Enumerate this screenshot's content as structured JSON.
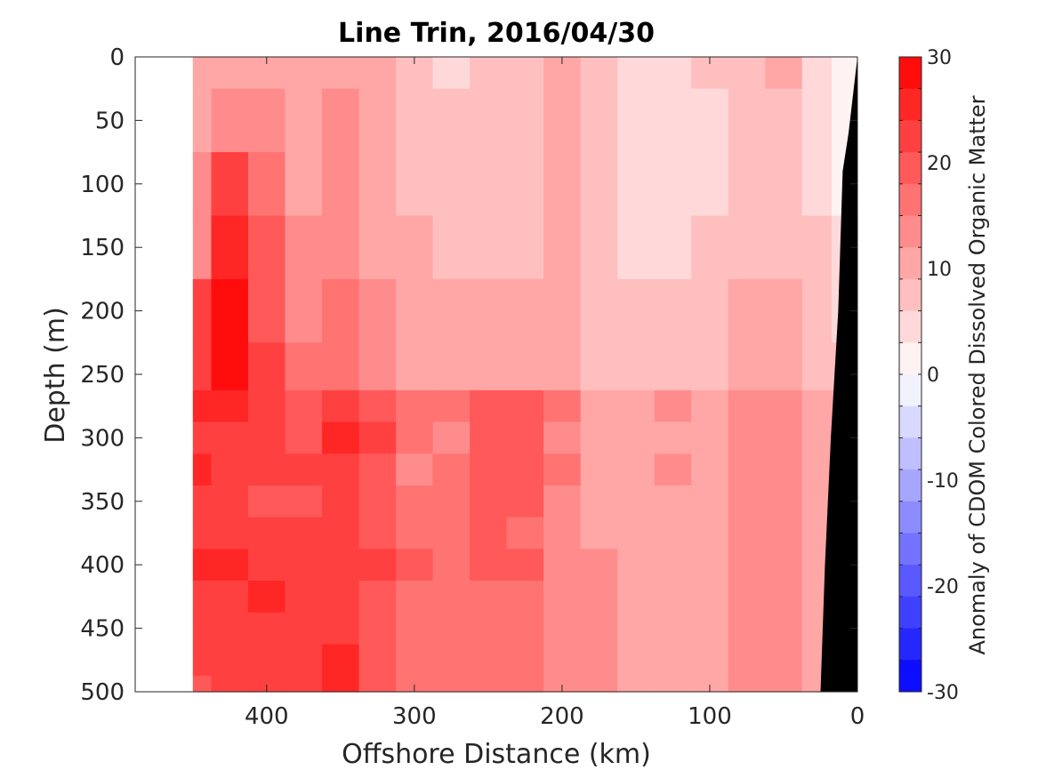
{
  "chart_data": {
    "type": "heatmap",
    "title": "Line Trin, 2016/04/30",
    "xlabel": "Offshore Distance (km)",
    "ylabel": "Depth (m)",
    "colorbar_label": "Anomaly of CDOM Colored Dissolved Organic Matter",
    "xlim": [
      489,
      0
    ],
    "ylim": [
      0,
      500
    ],
    "x_reversed": true,
    "y_reversed": true,
    "x_ticks": [
      400,
      300,
      200,
      100,
      0
    ],
    "y_ticks": [
      0,
      50,
      100,
      150,
      200,
      250,
      300,
      350,
      400,
      450,
      500
    ],
    "colorbar_range": [
      -30,
      30
    ],
    "colorbar_ticks": [
      30,
      20,
      10,
      0,
      -10,
      -20,
      -30
    ],
    "colorbar_step": 3,
    "grid": false,
    "land_color": "#000000",
    "data_x_start": 450,
    "x_columns": [
      450,
      425,
      400,
      375,
      350,
      325,
      300,
      275,
      250,
      225,
      200,
      175,
      150,
      125,
      100,
      75,
      50,
      25,
      10
    ],
    "depth_rows": [
      {
        "depth": 0,
        "values": [
          10,
          10,
          11,
          11,
          11,
          9,
          8,
          5,
          6,
          7,
          9,
          6,
          5,
          5,
          6,
          8,
          9,
          5,
          2
        ]
      },
      {
        "depth": 50,
        "values": [
          11,
          14,
          13,
          11,
          12,
          10,
          8,
          6,
          6,
          7,
          9,
          7,
          5,
          5,
          5,
          7,
          8,
          5,
          2
        ]
      },
      {
        "depth": 100,
        "values": [
          12,
          22,
          16,
          11,
          13,
          10,
          8,
          7,
          7,
          8,
          9,
          7,
          5,
          5,
          5,
          7,
          8,
          5,
          2
        ]
      },
      {
        "depth": 150,
        "values": [
          13,
          24,
          18,
          12,
          14,
          11,
          9,
          8,
          7,
          8,
          9,
          7,
          5,
          5,
          6,
          7,
          8,
          6,
          3
        ]
      },
      {
        "depth": 200,
        "values": [
          22,
          27,
          19,
          14,
          15,
          13,
          10,
          10,
          11,
          11,
          10,
          8,
          6,
          7,
          7,
          9,
          9,
          7,
          4
        ]
      },
      {
        "depth": 250,
        "values": [
          22,
          27,
          21,
          16,
          17,
          14,
          11,
          10,
          11,
          11,
          10,
          8,
          7,
          7,
          8,
          9,
          10,
          8,
          6
        ]
      },
      {
        "depth": 275,
        "values": [
          24,
          24,
          22,
          20,
          23,
          20,
          15,
          15,
          19,
          19,
          15,
          11,
          10,
          12,
          11,
          13,
          13,
          11,
          9
        ]
      },
      {
        "depth": 300,
        "values": [
          23,
          22,
          21,
          20,
          24,
          21,
          15,
          14,
          18,
          18,
          14,
          10,
          9,
          11,
          10,
          12,
          12,
          10,
          8
        ]
      },
      {
        "depth": 325,
        "values": [
          26,
          23,
          22,
          21,
          22,
          20,
          14,
          15,
          20,
          20,
          15,
          11,
          10,
          12,
          11,
          13,
          12,
          11,
          9
        ]
      },
      {
        "depth": 350,
        "values": [
          21,
          22,
          20,
          20,
          22,
          19,
          15,
          16,
          19,
          18,
          14,
          11,
          9,
          11,
          10,
          12,
          12,
          10,
          9
        ]
      },
      {
        "depth": 375,
        "values": [
          21,
          22,
          21,
          21,
          22,
          20,
          16,
          16,
          18,
          17,
          13,
          11,
          9,
          10,
          10,
          12,
          12,
          10,
          9
        ]
      },
      {
        "depth": 400,
        "values": [
          24,
          25,
          23,
          22,
          23,
          21,
          18,
          17,
          19,
          18,
          14,
          12,
          10,
          11,
          10,
          13,
          12,
          10,
          9
        ]
      },
      {
        "depth": 425,
        "values": [
          21,
          22,
          24,
          21,
          22,
          20,
          17,
          16,
          17,
          17,
          14,
          12,
          11,
          10,
          10,
          12,
          12,
          11,
          9
        ]
      },
      {
        "depth": 450,
        "values": [
          21,
          22,
          23,
          21,
          22,
          19,
          17,
          16,
          17,
          16,
          13,
          12,
          11,
          10,
          11,
          12,
          12,
          11,
          9
        ]
      },
      {
        "depth": 475,
        "values": [
          22,
          23,
          23,
          22,
          24,
          20,
          17,
          16,
          17,
          17,
          14,
          12,
          11,
          11,
          11,
          13,
          13,
          11,
          9
        ]
      },
      {
        "depth": 500,
        "values": [
          20,
          22,
          23,
          22,
          25,
          20,
          17,
          16,
          17,
          17,
          13,
          12,
          11,
          11,
          11,
          12,
          12,
          11,
          9
        ]
      }
    ],
    "bathymetry": [
      {
        "x": 0,
        "depth": 0
      },
      {
        "x": 6,
        "depth": 60
      },
      {
        "x": 10,
        "depth": 90
      },
      {
        "x": 13,
        "depth": 200
      },
      {
        "x": 18,
        "depth": 300
      },
      {
        "x": 22,
        "depth": 400
      },
      {
        "x": 25,
        "depth": 500
      }
    ]
  }
}
